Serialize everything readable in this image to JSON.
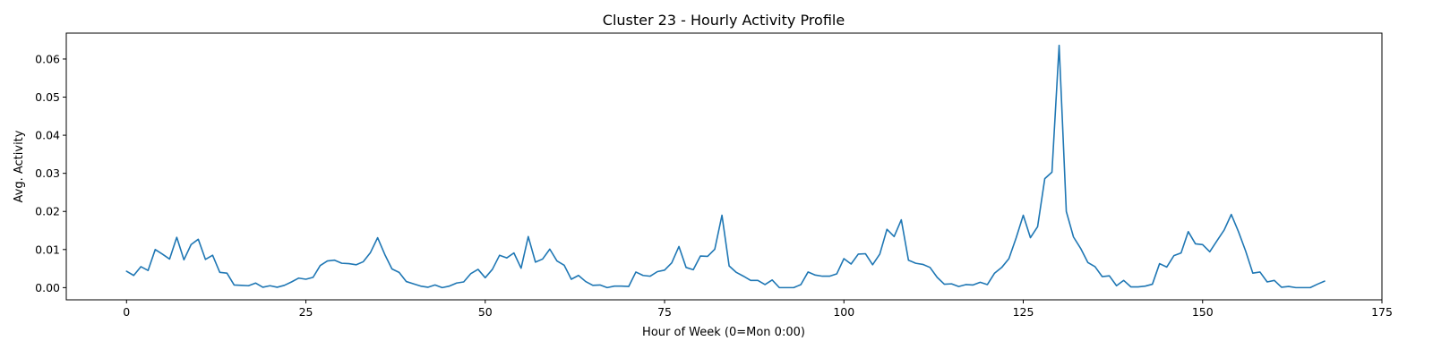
{
  "chart_data": {
    "type": "line",
    "title": "Cluster 23 - Hourly Activity Profile",
    "xlabel": "Hour of Week (0=Mon 0:00)",
    "ylabel": "Avg. Activity",
    "xlim": [
      -8.4,
      175
    ],
    "ylim": [
      -0.0032,
      0.0668
    ],
    "x_ticks": [
      0,
      25,
      50,
      75,
      100,
      125,
      150,
      175
    ],
    "y_ticks": [
      0.0,
      0.01,
      0.02,
      0.03,
      0.04,
      0.05,
      0.06
    ],
    "x_tick_labels": [
      "0",
      "25",
      "50",
      "75",
      "100",
      "125",
      "150",
      "175"
    ],
    "y_tick_labels": [
      "0.00",
      "0.01",
      "0.02",
      "0.03",
      "0.04",
      "0.05",
      "0.06"
    ],
    "grid": false,
    "series": [
      {
        "color": "#1f77b4",
        "x_start": 0,
        "values": [
          0.0043,
          0.0032,
          0.0055,
          0.0045,
          0.01,
          0.0088,
          0.0075,
          0.0132,
          0.0073,
          0.0113,
          0.0127,
          0.0074,
          0.0085,
          0.004,
          0.0038,
          0.0007,
          0.0006,
          0.0005,
          0.0012,
          0.0001,
          0.0005,
          0.0001,
          0.0006,
          0.0015,
          0.0025,
          0.0022,
          0.0027,
          0.0058,
          0.007,
          0.0072,
          0.0064,
          0.0063,
          0.006,
          0.0068,
          0.0092,
          0.0131,
          0.0087,
          0.0049,
          0.004,
          0.0016,
          0.001,
          0.0004,
          0.0001,
          0.0007,
          0.0,
          0.0004,
          0.0012,
          0.0015,
          0.0037,
          0.0048,
          0.0026,
          0.0048,
          0.0085,
          0.0078,
          0.0091,
          0.0051,
          0.0134,
          0.0067,
          0.0075,
          0.0101,
          0.007,
          0.0059,
          0.0022,
          0.0032,
          0.0016,
          0.0006,
          0.0007,
          0.0,
          0.0004,
          0.0004,
          0.0003,
          0.0041,
          0.0032,
          0.003,
          0.0042,
          0.0046,
          0.0065,
          0.0108,
          0.0053,
          0.0047,
          0.0083,
          0.0082,
          0.0101,
          0.019,
          0.0057,
          0.004,
          0.003,
          0.0019,
          0.0019,
          0.0008,
          0.002,
          0.0,
          0.0,
          0.0,
          0.0008,
          0.0041,
          0.0033,
          0.003,
          0.003,
          0.0036,
          0.0076,
          0.0062,
          0.0088,
          0.0089,
          0.006,
          0.0088,
          0.0153,
          0.0134,
          0.0178,
          0.0072,
          0.0064,
          0.0061,
          0.0053,
          0.0027,
          0.0009,
          0.001,
          0.0003,
          0.0008,
          0.0007,
          0.0014,
          0.0008,
          0.0038,
          0.0053,
          0.0076,
          0.013,
          0.019,
          0.0131,
          0.016,
          0.0286,
          0.0303,
          0.0636,
          0.02,
          0.0133,
          0.0103,
          0.0066,
          0.0055,
          0.0029,
          0.0031,
          0.0005,
          0.0019,
          0.0002,
          0.0002,
          0.0004,
          0.0009,
          0.0063,
          0.0054,
          0.0084,
          0.0091,
          0.0147,
          0.0115,
          0.0113,
          0.0094,
          0.0123,
          0.0151,
          0.0192,
          0.0147,
          0.0096,
          0.0038,
          0.0041,
          0.0015,
          0.0019,
          0.0001,
          0.0003,
          0.0,
          0.0,
          0.0,
          0.0009,
          0.0017
        ]
      }
    ]
  }
}
